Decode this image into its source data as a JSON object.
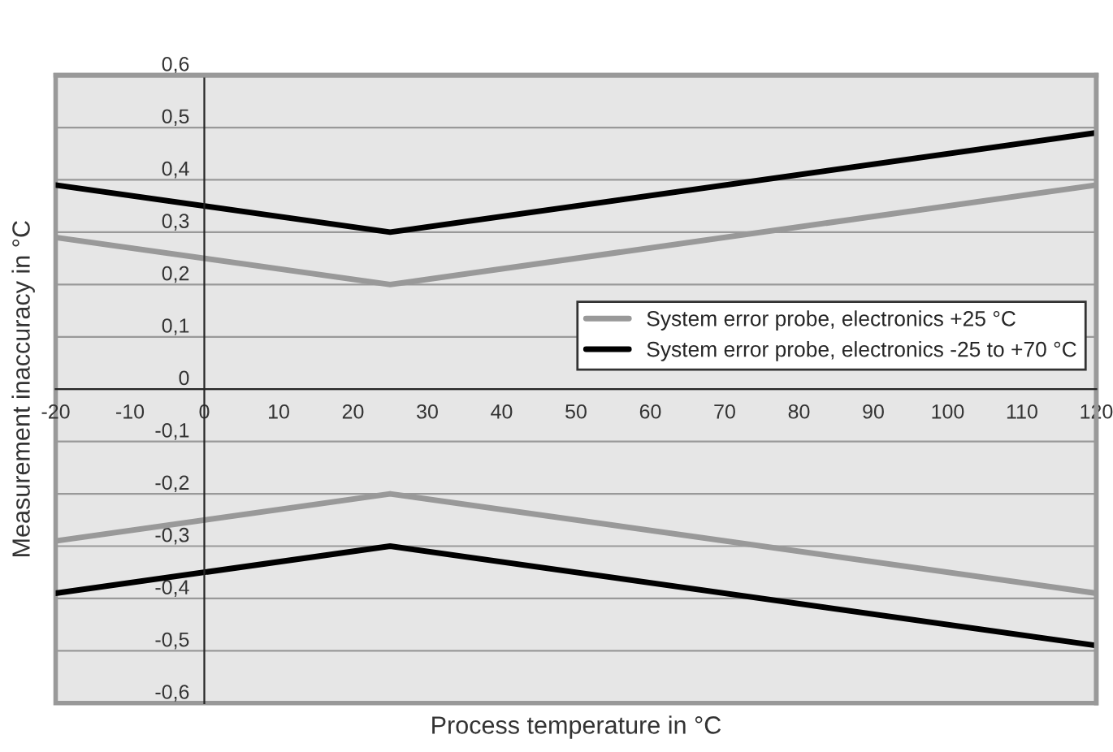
{
  "chart_data": {
    "type": "line",
    "xlabel": "Process temperature in °C",
    "ylabel": "Measurement inaccuracy in °C",
    "x": [
      -20,
      25,
      120
    ],
    "series": [
      {
        "name": "System error probe, electronics +25 °C",
        "color": "#999999",
        "values": [
          0.29,
          0.2,
          0.39
        ]
      },
      {
        "name": "System error probe, electronics -25 to +70 °C",
        "color": "#000000",
        "values": [
          0.39,
          0.3,
          0.49
        ]
      },
      {
        "color": "#999999",
        "values": [
          -0.29,
          -0.2,
          -0.39
        ]
      },
      {
        "color": "#000000",
        "values": [
          -0.39,
          -0.3,
          -0.49
        ]
      }
    ],
    "xlim": [
      -20,
      120
    ],
    "ylim": [
      -0.6,
      0.6
    ],
    "xticks": [
      -20,
      -10,
      0,
      10,
      20,
      30,
      40,
      50,
      60,
      70,
      80,
      90,
      100,
      110,
      120
    ],
    "yticks": [
      {
        "value": -0.6,
        "label": "-0,6"
      },
      {
        "value": -0.5,
        "label": "-0,5"
      },
      {
        "value": -0.4,
        "label": "-0,4"
      },
      {
        "value": -0.3,
        "label": "-0,3"
      },
      {
        "value": -0.2,
        "label": "-0,2"
      },
      {
        "value": -0.1,
        "label": "-0,1"
      },
      0,
      {
        "value": 0.1,
        "label": "0,1"
      },
      {
        "value": 0.2,
        "label": "0,2"
      },
      {
        "value": 0.3,
        "label": "0,3"
      },
      {
        "value": 0.4,
        "label": "0,4"
      },
      {
        "value": 0.5,
        "label": "0,5"
      },
      {
        "value": 0.6,
        "label": "0,6"
      }
    ],
    "grid": "y",
    "legend": "right",
    "marker": "none",
    "line_style": "solid"
  }
}
